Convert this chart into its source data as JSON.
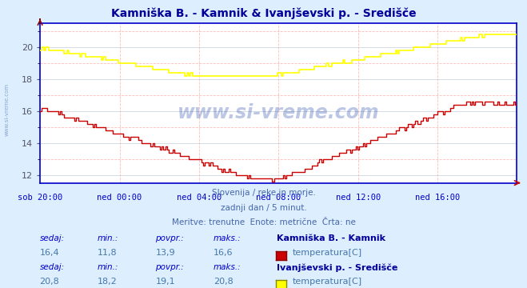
{
  "title": "Kamniška B. - Kamnik & Ivanjševski p. - Središče",
  "title_color": "#000099",
  "bg_color": "#ddeeff",
  "plot_bg_color": "#ffffff",
  "grid_color_major": "#aabbcc",
  "grid_color_minor": "#ffaaaa",
  "x_labels": [
    "sob 20:00",
    "ned 00:00",
    "ned 04:00",
    "ned 08:00",
    "ned 12:00",
    "ned 16:00"
  ],
  "x_ticks_norm": [
    0.0,
    0.1667,
    0.3333,
    0.5,
    0.6667,
    0.8333
  ],
  "ylim": [
    11.5,
    21.5
  ],
  "yticks": [
    12,
    14,
    16,
    18,
    20
  ],
  "axis_color": "#0000cc",
  "line1_color": "#cc0000",
  "line2_color": "#ffff00",
  "watermark_text": "www.si-vreme.com",
  "watermark_color": "#2244aa",
  "side_watermark_color": "#5577aa",
  "subtitle_lines": [
    "Slovenija / reke in morje.",
    "zadnji dan / 5 minut.",
    "Meritve: trenutne  Enote: metrične  Črta: ne"
  ],
  "subtitle_color": "#4466aa",
  "table_header_color": "#0000cc",
  "table_value_color": "#4477aa",
  "table_station_color": "#000099",
  "col_headers": [
    "sedaj:",
    "min.:",
    "povpr.:",
    "maks.:"
  ],
  "row1": {
    "sedaj": "16,4",
    "min": "11,8",
    "povpr": "13,9",
    "maks": "16,6",
    "station": "Kamniška B. - Kamnik",
    "param": "temperatura[C]",
    "color": "#cc0000",
    "border": "#880000"
  },
  "row2": {
    "sedaj": "20,8",
    "min": "18,2",
    "povpr": "19,1",
    "maks": "20,8",
    "station": "Ivanjševski p. - Središče",
    "param": "temperatura[C]",
    "color": "#ffff00",
    "border": "#888800"
  }
}
